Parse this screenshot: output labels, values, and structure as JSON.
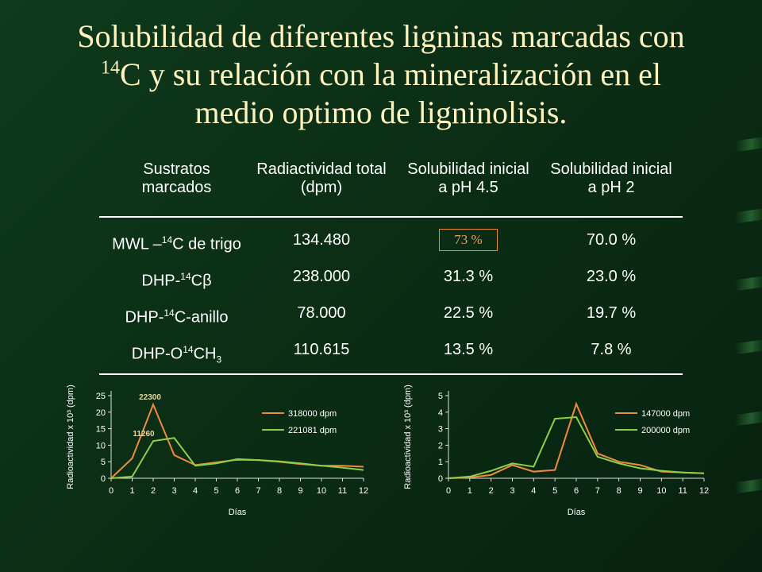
{
  "title": {
    "line1": "Solubilidad de diferentes ligninas marcadas con",
    "sup": "14",
    "line2": "C y su relación con la mineralización en el",
    "line3": "medio optimo de ligninolisis."
  },
  "table": {
    "headers": [
      [
        "Sustratos",
        "marcados"
      ],
      [
        "Radiactividad total",
        "(dpm)"
      ],
      [
        "Solubilidad inicial",
        "a pH 4.5"
      ],
      [
        "Solubilidad inicial",
        "a pH 2"
      ]
    ],
    "rows": [
      {
        "sub_pre": "MWL –",
        "sup": "14",
        "sub_post": "C de trigo",
        "sub_sub": "",
        "total": "134.480",
        "ph45": "73 %",
        "ph2": "70.0 %"
      },
      {
        "sub_pre": "DHP-",
        "sup": "14",
        "sub_post": "Cβ",
        "sub_sub": "",
        "total": "238.000",
        "ph45": "31.3 %",
        "ph2": "23.0 %"
      },
      {
        "sub_pre": "DHP-",
        "sup": "14",
        "sub_post": "C-anillo",
        "sub_sub": "",
        "total": "78.000",
        "ph45": "22.5 %",
        "ph2": "19.7 %"
      },
      {
        "sub_pre": "DHP-O",
        "sup": "14",
        "sub_post": "CH",
        "sub_sub": "3",
        "total": "110.615",
        "ph45": "13.5 %",
        "ph2": "7.8 %"
      }
    ]
  },
  "chart_data": [
    {
      "type": "line",
      "x": [
        0,
        1,
        2,
        3,
        4,
        5,
        6,
        7,
        8,
        9,
        10,
        11,
        12
      ],
      "xlabel": "Días",
      "ylabel": "Radioactividad x 10³ (dpm)",
      "ylim": [
        0,
        25
      ],
      "yticks": [
        0,
        5,
        10,
        15,
        20,
        25
      ],
      "series": [
        {
          "name": "318000 dpm",
          "color": "#f08a3c",
          "values": [
            0,
            6,
            22.3,
            7,
            4,
            4.8,
            5.6,
            5.5,
            5,
            4.3,
            3.8,
            3.8,
            3.5
          ]
        },
        {
          "name": "221081 dpm",
          "color": "#8ed04a",
          "values": [
            0,
            0.5,
            11.26,
            12.2,
            3.8,
            4.5,
            5.8,
            5.5,
            5.1,
            4.5,
            3.8,
            3.2,
            2.5
          ]
        }
      ],
      "annotations": [
        "22300",
        "11260"
      ],
      "legend": "top-right"
    },
    {
      "type": "line",
      "x": [
        0,
        1,
        2,
        3,
        4,
        5,
        6,
        7,
        8,
        9,
        10,
        11,
        12
      ],
      "xlabel": "Días",
      "ylabel": "Radioactividad x 10³ (dpm)",
      "ylim": [
        0,
        5
      ],
      "yticks": [
        0,
        1,
        2,
        3,
        4,
        5
      ],
      "series": [
        {
          "name": "147000 dpm",
          "color": "#f08a3c",
          "values": [
            0,
            0.05,
            0.2,
            0.8,
            0.4,
            0.5,
            4.5,
            1.5,
            1.0,
            0.8,
            0.4,
            0.35,
            0.3
          ]
        },
        {
          "name": "200000 dpm",
          "color": "#8ed04a",
          "values": [
            0,
            0.1,
            0.45,
            0.9,
            0.7,
            3.6,
            3.7,
            1.3,
            0.9,
            0.6,
            0.45,
            0.35,
            0.3
          ]
        }
      ],
      "legend": "top-right"
    }
  ],
  "colors": {
    "background": "#0b2e15",
    "title": "#fff3c0",
    "axis": "#e0e0e0"
  }
}
